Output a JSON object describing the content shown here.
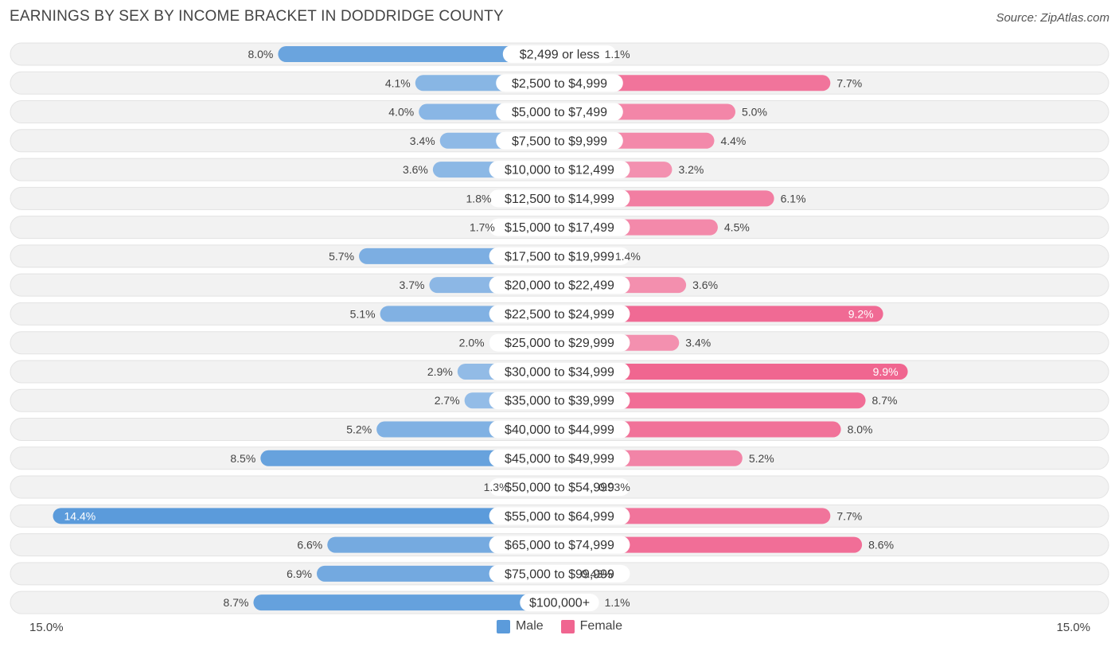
{
  "title": "EARNINGS BY SEX BY INCOME BRACKET IN DODDRIDGE COUNTY",
  "source": "Source: ZipAtlas.com",
  "axis": {
    "left_label": "15.0%",
    "right_label": "15.0%"
  },
  "legend": {
    "male": "Male",
    "female": "Female"
  },
  "colors": {
    "male": "#5b9bdb",
    "male_light": "#a8c8eb",
    "female": "#f06590",
    "female_light": "#f5a6bf",
    "row_bg": "#f2f2f2"
  },
  "chart_data": {
    "type": "bar",
    "orientation": "horizontal-diverging",
    "title": "EARNINGS BY SEX BY INCOME BRACKET IN DODDRIDGE COUNTY",
    "xlim": [
      -15,
      15
    ],
    "categories": [
      "$2,499 or less",
      "$2,500 to $4,999",
      "$5,000 to $7,499",
      "$7,500 to $9,999",
      "$10,000 to $12,499",
      "$12,500 to $14,999",
      "$15,000 to $17,499",
      "$17,500 to $19,999",
      "$20,000 to $22,499",
      "$22,500 to $24,999",
      "$25,000 to $29,999",
      "$30,000 to $34,999",
      "$35,000 to $39,999",
      "$40,000 to $44,999",
      "$45,000 to $49,999",
      "$50,000 to $54,999",
      "$55,000 to $64,999",
      "$65,000 to $74,999",
      "$75,000 to $99,999",
      "$100,000+"
    ],
    "series": [
      {
        "name": "Male",
        "values": [
          8.0,
          4.1,
          4.0,
          3.4,
          3.6,
          1.8,
          1.7,
          5.7,
          3.7,
          5.1,
          2.0,
          2.9,
          2.7,
          5.2,
          8.5,
          1.3,
          14.4,
          6.6,
          6.9,
          8.7
        ],
        "labels": [
          "8.0%",
          "4.1%",
          "4.0%",
          "3.4%",
          "3.6%",
          "1.8%",
          "1.7%",
          "5.7%",
          "3.7%",
          "5.1%",
          "2.0%",
          "2.9%",
          "2.7%",
          "5.2%",
          "8.5%",
          "1.3%",
          "14.4%",
          "6.6%",
          "6.9%",
          "8.7%"
        ]
      },
      {
        "name": "Female",
        "values": [
          1.1,
          7.7,
          5.0,
          4.4,
          3.2,
          6.1,
          4.5,
          1.4,
          3.6,
          9.2,
          3.4,
          9.9,
          8.7,
          8.0,
          5.2,
          0.93,
          7.7,
          8.6,
          0.43,
          1.1
        ],
        "labels": [
          "1.1%",
          "7.7%",
          "5.0%",
          "4.4%",
          "3.2%",
          "6.1%",
          "4.5%",
          "1.4%",
          "3.6%",
          "9.2%",
          "3.4%",
          "9.9%",
          "8.7%",
          "8.0%",
          "5.2%",
          "0.93%",
          "7.7%",
          "8.6%",
          "0.43%",
          "1.1%"
        ]
      }
    ],
    "legend": [
      "Male",
      "Female"
    ],
    "legend_position": "bottom-center"
  }
}
